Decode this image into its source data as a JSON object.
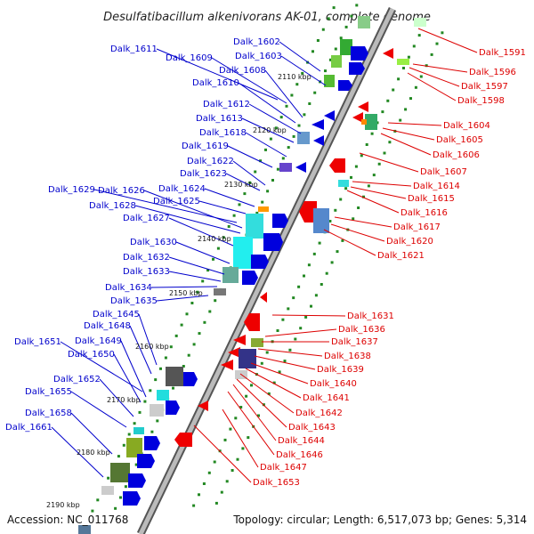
{
  "title": "Desulfatibacillum alkenivorans AK-01, complete genome",
  "accession": "Accession: NC_011768",
  "summary": "Topology: circular; Length: 6,517,073 bp; Genes: 5,314",
  "kbp_ticks": [
    "2110 kbp",
    "2120 kbp",
    "2130 kbp",
    "2140 kbp",
    "2150 kbp",
    "2160 kbp",
    "2170 kbp",
    "2180 kbp",
    "2190 kbp"
  ],
  "forward_genes": [
    "Dalk_1602",
    "Dalk_1611",
    "Dalk_1603",
    "Dalk_1609",
    "Dalk_1608",
    "Dalk_1610",
    "Dalk_1612",
    "Dalk_1613",
    "Dalk_1618",
    "Dalk_1619",
    "Dalk_1622",
    "Dalk_1623",
    "Dalk_1624",
    "Dalk_1629",
    "Dalk_1626",
    "Dalk_1625",
    "Dalk_1628",
    "Dalk_1627",
    "Dalk_1630",
    "Dalk_1632",
    "Dalk_1633",
    "Dalk_1634",
    "Dalk_1635",
    "Dalk_1645",
    "Dalk_1648",
    "Dalk_1651",
    "Dalk_1649",
    "Dalk_1650",
    "Dalk_1652",
    "Dalk_1655",
    "Dalk_1658",
    "Dalk_1661"
  ],
  "reverse_genes": [
    "Dalk_1591",
    "Dalk_1596",
    "Dalk_1597",
    "Dalk_1598",
    "Dalk_1604",
    "Dalk_1605",
    "Dalk_1606",
    "Dalk_1607",
    "Dalk_1614",
    "Dalk_1615",
    "Dalk_1616",
    "Dalk_1617",
    "Dalk_1620",
    "Dalk_1621",
    "Dalk_1631",
    "Dalk_1636",
    "Dalk_1637",
    "Dalk_1638",
    "Dalk_1639",
    "Dalk_1640",
    "Dalk_1641",
    "Dalk_1642",
    "Dalk_1643",
    "Dalk_1644",
    "Dalk_1646",
    "Dalk_1647",
    "Dalk_1653"
  ],
  "colors": {
    "forward": "#0000cc",
    "reverse": "#dd0000",
    "backbone": "#999999",
    "gc_dots": "#228822"
  }
}
